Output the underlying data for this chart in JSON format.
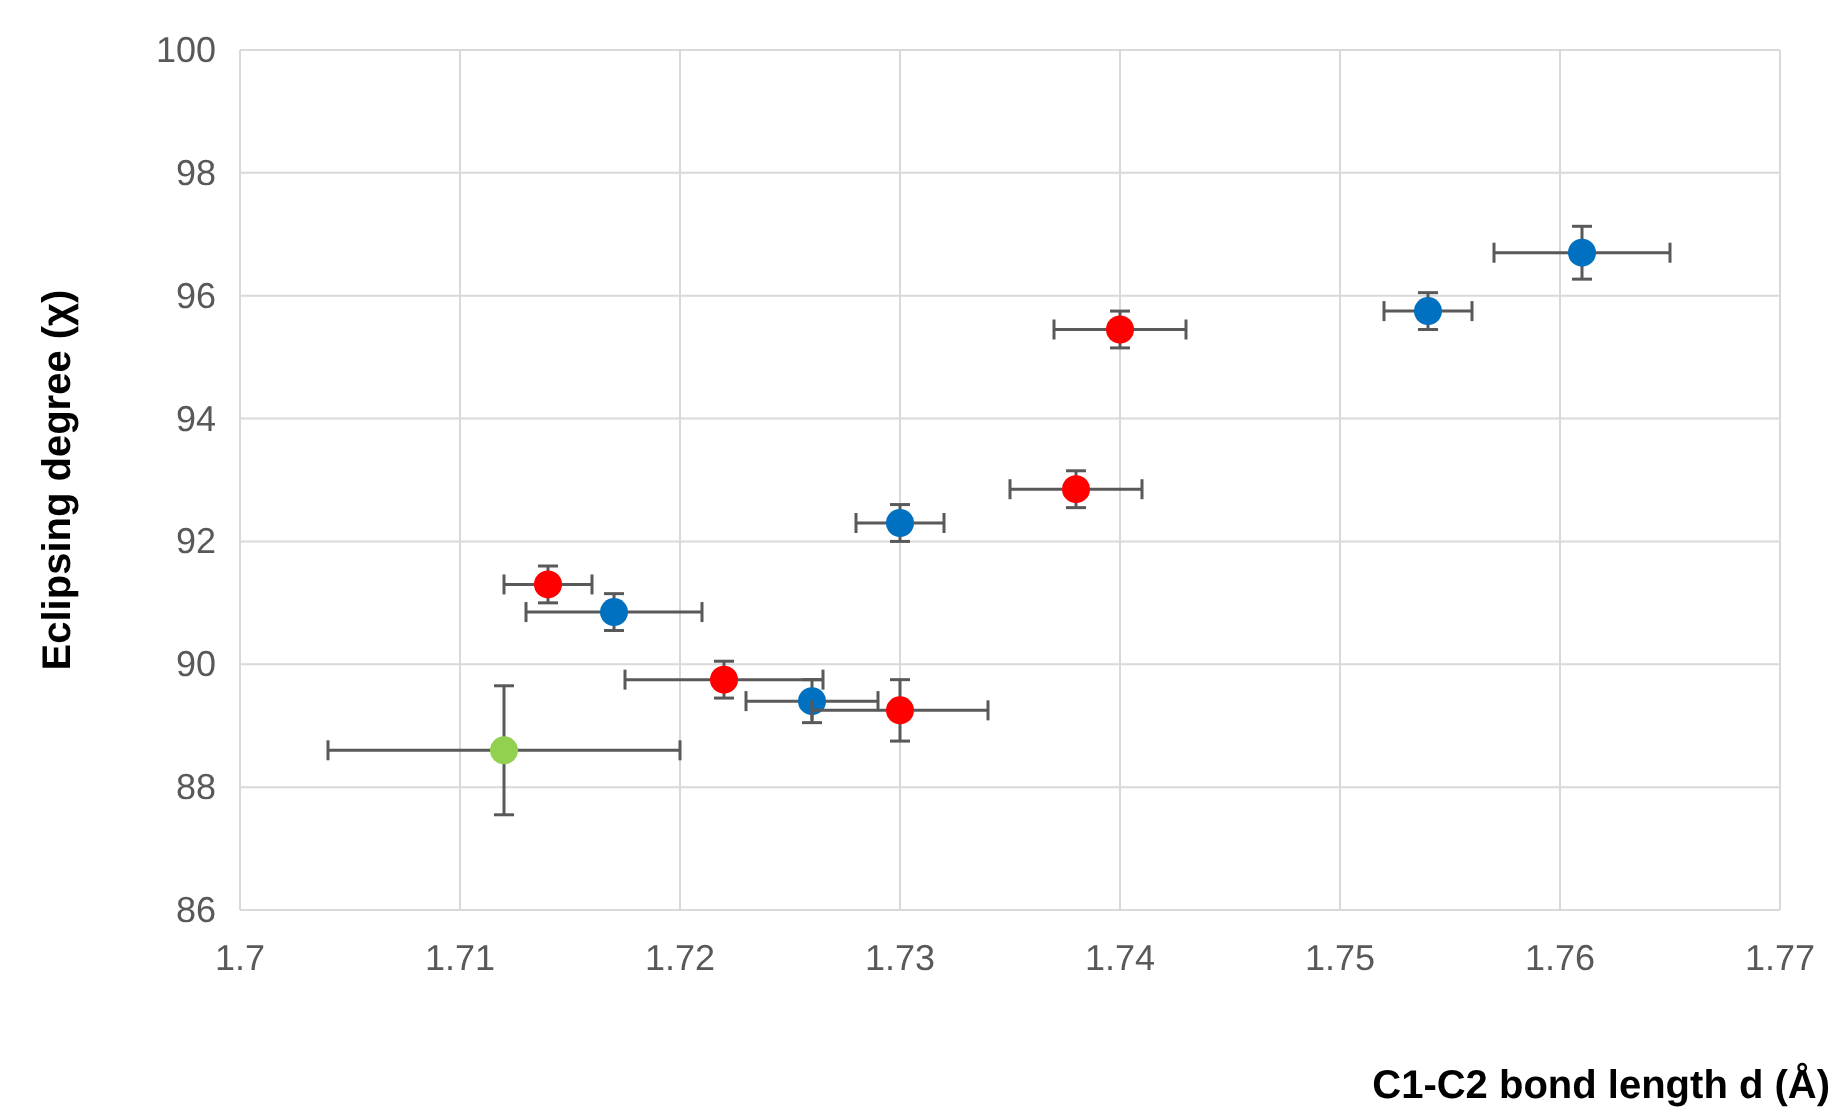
{
  "chart_data": {
    "type": "scatter",
    "xlabel": "C1-C2 bond length d (Å)",
    "ylabel": "Eclipsing degree (χ)",
    "xlim": [
      1.7,
      1.77
    ],
    "xticks": [
      {
        "value": 1.7,
        "label": "1.7"
      },
      {
        "value": 1.71,
        "label": "1.71"
      },
      {
        "value": 1.72,
        "label": "1.72"
      },
      {
        "value": 1.73,
        "label": "1.73"
      },
      {
        "value": 1.74,
        "label": "1.74"
      },
      {
        "value": 1.75,
        "label": "1.75"
      },
      {
        "value": 1.76,
        "label": "1.76"
      },
      {
        "value": 1.77,
        "label": "1.77"
      }
    ],
    "ylim": [
      86,
      100
    ],
    "yticks": [
      86,
      88,
      90,
      92,
      94,
      96,
      98,
      100
    ],
    "grid": true,
    "marker": "circle",
    "series": [
      {
        "color": "#0070c0",
        "x": [
          1.761,
          1.754,
          1.73,
          1.717,
          1.726
        ],
        "values": [
          96.7,
          95.75,
          92.3,
          90.85,
          89.4
        ],
        "errors": [
          0.43,
          0.3,
          0.3,
          0.3,
          0.35
        ],
        "xerrors": [
          0.004,
          0.002,
          0.002,
          0.004,
          0.003
        ]
      },
      {
        "color": "#ff0000",
        "x": [
          1.74,
          1.738,
          1.714,
          1.722,
          1.73
        ],
        "values": [
          95.45,
          92.85,
          91.3,
          89.75,
          89.25
        ],
        "errors": [
          0.3,
          0.3,
          0.3,
          0.3,
          0.5
        ],
        "xerrors": [
          0.003,
          0.003,
          0.002,
          0.0045,
          0.004
        ]
      },
      {
        "color": "#92d050",
        "x": [
          1.712
        ],
        "values": [
          88.6
        ],
        "errors": [
          1.05
        ],
        "xerrors": [
          0.008
        ]
      }
    ]
  }
}
